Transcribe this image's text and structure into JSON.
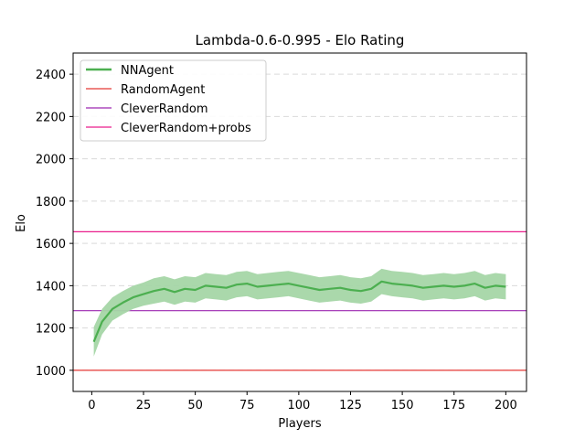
{
  "chart_data": {
    "type": "line",
    "title": "Lambda-0.6-0.995 - Elo Rating",
    "xlabel": "Players",
    "ylabel": "Elo",
    "xlim": [
      -9,
      210
    ],
    "ylim": [
      900,
      2500
    ],
    "xticks": [
      0,
      25,
      50,
      75,
      100,
      125,
      150,
      175,
      200
    ],
    "yticks": [
      1000,
      1200,
      1400,
      1600,
      1800,
      2000,
      2200,
      2400
    ],
    "grid": "horizontal dashed",
    "legend_position": "top-left",
    "series": [
      {
        "name": "NNAgent",
        "color": "#4caf50",
        "band_color": "#a5d6a7",
        "x": [
          1,
          5,
          10,
          15,
          20,
          25,
          30,
          35,
          40,
          45,
          50,
          55,
          60,
          65,
          70,
          75,
          80,
          85,
          90,
          95,
          100,
          105,
          110,
          115,
          120,
          125,
          130,
          135,
          140,
          145,
          150,
          155,
          160,
          165,
          170,
          175,
          180,
          185,
          190,
          195,
          200
        ],
        "y": [
          1135,
          1230,
          1290,
          1320,
          1345,
          1360,
          1375,
          1385,
          1370,
          1385,
          1380,
          1400,
          1395,
          1390,
          1405,
          1410,
          1395,
          1400,
          1405,
          1410,
          1400,
          1390,
          1380,
          1385,
          1390,
          1380,
          1375,
          1385,
          1420,
          1410,
          1405,
          1400,
          1390,
          1395,
          1400,
          1395,
          1400,
          1410,
          1390,
          1400,
          1395
        ],
        "band_halfwidth": [
          70,
          60,
          55,
          55,
          55,
          55,
          60,
          60,
          60,
          60,
          60,
          60,
          60,
          60,
          60,
          60,
          60,
          60,
          60,
          60,
          60,
          60,
          60,
          60,
          60,
          60,
          60,
          60,
          60,
          60,
          60,
          60,
          60,
          60,
          60,
          60,
          60,
          60,
          60,
          60,
          60
        ]
      },
      {
        "name": "RandomAgent",
        "color": "#e53935",
        "hline": 1000
      },
      {
        "name": "CleverRandom",
        "color": "#9c27b0",
        "hline": 1282
      },
      {
        "name": "CleverRandom+probs",
        "color": "#e91e8c",
        "hline": 1655
      }
    ]
  }
}
